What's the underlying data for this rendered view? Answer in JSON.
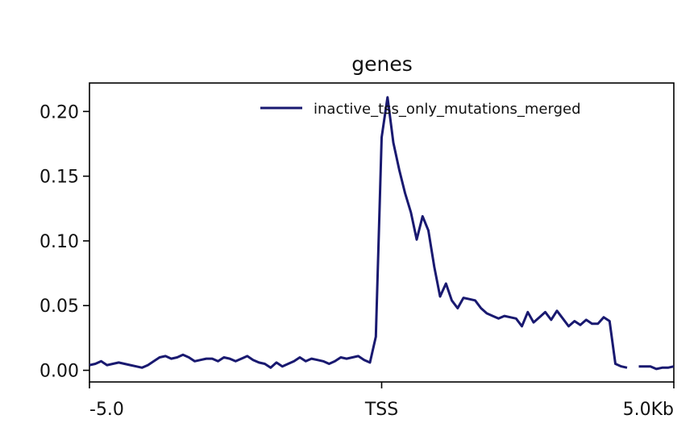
{
  "chart_data": {
    "type": "line",
    "title": "genes",
    "xlabel": "",
    "ylabel": "",
    "x_tick_labels": [
      "-5.0",
      "TSS",
      "5.0Kb"
    ],
    "xlim": [
      -5000,
      5000
    ],
    "ylim": [
      -0.009,
      0.222
    ],
    "y_ticks": [
      0.0,
      0.05,
      0.1,
      0.15,
      0.2
    ],
    "y_tick_labels": [
      "0.00",
      "0.05",
      "0.10",
      "0.15",
      "0.20"
    ],
    "grid": false,
    "legend_position": "top-right",
    "series": [
      {
        "name": "inactive_tss_only_mutations_merged",
        "color": "#191970",
        "x": [
          -5000,
          -4900,
          -4800,
          -4700,
          -4600,
          -4500,
          -4400,
          -4300,
          -4200,
          -4100,
          -4000,
          -3900,
          -3800,
          -3700,
          -3600,
          -3500,
          -3400,
          -3300,
          -3200,
          -3100,
          -3000,
          -2900,
          -2800,
          -2700,
          -2600,
          -2500,
          -2400,
          -2300,
          -2200,
          -2100,
          -2000,
          -1900,
          -1800,
          -1700,
          -1600,
          -1500,
          -1400,
          -1300,
          -1200,
          -1100,
          -1000,
          -900,
          -800,
          -700,
          -600,
          -500,
          -400,
          -300,
          -200,
          -100,
          0,
          100,
          200,
          300,
          400,
          500,
          600,
          700,
          800,
          900,
          1000,
          1100,
          1200,
          1300,
          1400,
          1500,
          1600,
          1700,
          1800,
          1900,
          2000,
          2100,
          2200,
          2300,
          2400,
          2500,
          2600,
          2700,
          2800,
          2900,
          3000,
          3100,
          3200,
          3300,
          3400,
          3500,
          3600,
          3700,
          3800,
          3900,
          4000,
          4100,
          4200,
          4300,
          4400,
          4500,
          4600,
          4700,
          4800,
          4900,
          5000
        ],
        "values": [
          0.004,
          0.005,
          0.007,
          0.004,
          0.005,
          0.006,
          0.005,
          0.004,
          0.003,
          0.002,
          0.004,
          0.007,
          0.01,
          0.011,
          0.009,
          0.01,
          0.012,
          0.01,
          0.007,
          0.008,
          0.009,
          0.009,
          0.007,
          0.01,
          0.009,
          0.007,
          0.009,
          0.011,
          0.008,
          0.006,
          0.005,
          0.002,
          0.006,
          0.003,
          0.005,
          0.007,
          0.01,
          0.007,
          0.009,
          0.008,
          0.007,
          0.005,
          0.007,
          0.01,
          0.009,
          0.01,
          0.011,
          0.008,
          0.006,
          0.026,
          0.18,
          0.211,
          0.176,
          0.155,
          0.137,
          0.122,
          0.101,
          0.119,
          0.108,
          0.08,
          0.057,
          0.067,
          0.054,
          0.048,
          0.056,
          0.055,
          0.054,
          0.048,
          0.044,
          0.042,
          0.04,
          0.042,
          0.041,
          0.04,
          0.034,
          0.045,
          0.037,
          0.041,
          0.045,
          0.039,
          0.046,
          0.04,
          0.034,
          0.038,
          0.035,
          0.039,
          0.036,
          0.036,
          0.041,
          0.038,
          0.005,
          0.003,
          0.002,
          null,
          0.003,
          0.003,
          0.003,
          0.001,
          0.002,
          0.002,
          0.003
        ]
      }
    ]
  }
}
